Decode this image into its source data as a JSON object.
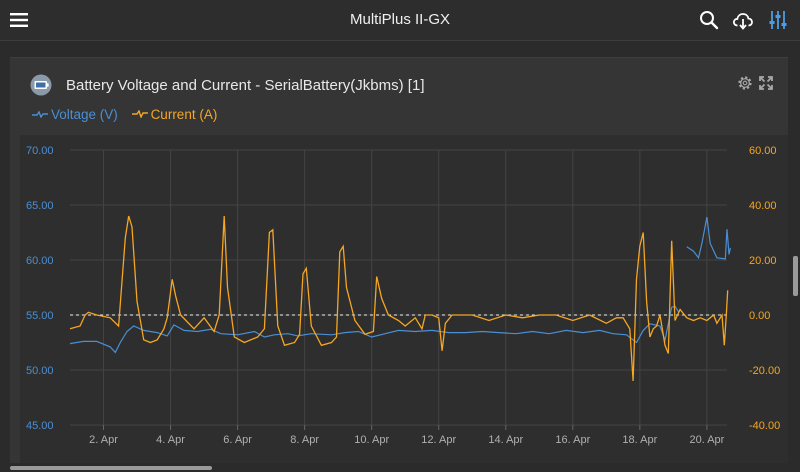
{
  "app": {
    "title": "MultiPlus II-GX",
    "icons": [
      "menu-icon",
      "search-icon",
      "cloud-download-icon",
      "sliders-icon"
    ]
  },
  "widget": {
    "title": "Battery Voltage and Current - SerialBattery(Jkbms) [1]",
    "icons": [
      "battery-icon",
      "gear-icon",
      "expand-icon"
    ]
  },
  "colors": {
    "voltage": "#4a8fd4",
    "current": "#f5a623",
    "left_axis_text": "#4a8fd4",
    "right_axis_text": "#f5a623"
  },
  "chart_data": {
    "type": "line",
    "title": "",
    "legend": "top-left",
    "grid": true,
    "x_ticks": [
      "2. Apr",
      "4. Apr",
      "6. Apr",
      "8. Apr",
      "10. Apr",
      "12. Apr",
      "14. Apr",
      "16. Apr",
      "18. Apr",
      "20. Apr"
    ],
    "xlim_days": [
      1.0,
      20.6
    ],
    "y_left": {
      "ticks": [
        "70.00",
        "65.00",
        "60.00",
        "55.00",
        "50.00",
        "45.00"
      ],
      "range": [
        45,
        70
      ]
    },
    "y_right": {
      "ticks": [
        "60.00",
        "40.00",
        "20.00",
        "0.00",
        "-20.00",
        "-40.00"
      ],
      "range": [
        -40,
        60
      ]
    },
    "zero_reference_line": 0,
    "series": [
      {
        "name": "Voltage (V)",
        "axis": "left",
        "points": [
          [
            1.0,
            52.4
          ],
          [
            1.4,
            52.6
          ],
          [
            1.8,
            52.6
          ],
          [
            2.2,
            52.1
          ],
          [
            2.35,
            51.6
          ],
          [
            2.5,
            52.5
          ],
          [
            2.7,
            53.5
          ],
          [
            2.9,
            54.0
          ],
          [
            3.2,
            53.6
          ],
          [
            3.6,
            53.4
          ],
          [
            3.9,
            53.1
          ],
          [
            4.1,
            54.1
          ],
          [
            4.4,
            53.6
          ],
          [
            4.8,
            53.5
          ],
          [
            5.2,
            53.7
          ],
          [
            5.5,
            53.3
          ],
          [
            6.0,
            53.2
          ],
          [
            6.5,
            53.5
          ],
          [
            6.8,
            53.0
          ],
          [
            7.1,
            53.2
          ],
          [
            7.5,
            53.3
          ],
          [
            7.8,
            53.1
          ],
          [
            8.2,
            53.3
          ],
          [
            8.8,
            53.2
          ],
          [
            9.2,
            53.4
          ],
          [
            9.6,
            53.5
          ],
          [
            10.0,
            53.0
          ],
          [
            10.4,
            53.3
          ],
          [
            10.8,
            53.6
          ],
          [
            11.3,
            53.5
          ],
          [
            11.8,
            53.6
          ],
          [
            12.3,
            53.4
          ],
          [
            12.8,
            53.4
          ],
          [
            13.3,
            53.5
          ],
          [
            13.8,
            53.4
          ],
          [
            14.3,
            53.3
          ],
          [
            14.8,
            53.5
          ],
          [
            15.3,
            53.3
          ],
          [
            15.8,
            53.6
          ],
          [
            16.3,
            53.4
          ],
          [
            16.8,
            53.6
          ],
          [
            17.2,
            53.3
          ],
          [
            17.6,
            53.2
          ],
          [
            17.9,
            52.5
          ],
          [
            18.1,
            53.6
          ],
          [
            18.3,
            54.2
          ],
          [
            18.6,
            54.0
          ],
          [
            18.75,
            52.7
          ],
          [
            18.85,
            54.2
          ],
          [
            18.95,
            55.7
          ],
          [
            19.05,
            55.8
          ],
          [
            19.15,
            55.3
          ]
        ],
        "points_2": [
          [
            19.4,
            61.2
          ],
          [
            19.6,
            60.8
          ],
          [
            19.75,
            60.2
          ],
          [
            19.85,
            61.5
          ],
          [
            20.0,
            63.9
          ],
          [
            20.1,
            61.5
          ],
          [
            20.3,
            60.2
          ],
          [
            20.55,
            60.1
          ],
          [
            20.6,
            62.8
          ],
          [
            20.66,
            60.5
          ],
          [
            20.7,
            61.1
          ]
        ]
      },
      {
        "name": "Current (A)",
        "axis": "right",
        "points": [
          [
            1.0,
            -5
          ],
          [
            1.3,
            -4
          ],
          [
            1.45,
            0
          ],
          [
            1.55,
            1
          ],
          [
            1.8,
            0
          ],
          [
            2.2,
            -1
          ],
          [
            2.45,
            -4
          ],
          [
            2.65,
            28
          ],
          [
            2.75,
            36
          ],
          [
            2.85,
            32
          ],
          [
            3.0,
            5
          ],
          [
            3.2,
            -9
          ],
          [
            3.4,
            -10
          ],
          [
            3.6,
            -9
          ],
          [
            3.8,
            -5
          ],
          [
            3.9,
            -1
          ],
          [
            4.05,
            13
          ],
          [
            4.15,
            7
          ],
          [
            4.3,
            0
          ],
          [
            4.7,
            -5
          ],
          [
            5.0,
            -1
          ],
          [
            5.3,
            -6
          ],
          [
            5.45,
            0
          ],
          [
            5.6,
            36
          ],
          [
            5.7,
            10
          ],
          [
            5.9,
            -8
          ],
          [
            6.2,
            -10
          ],
          [
            6.6,
            -8
          ],
          [
            6.8,
            -5
          ],
          [
            6.95,
            30
          ],
          [
            7.05,
            31
          ],
          [
            7.2,
            -4
          ],
          [
            7.4,
            -11
          ],
          [
            7.7,
            -10
          ],
          [
            7.85,
            -7
          ],
          [
            7.95,
            15
          ],
          [
            8.05,
            17
          ],
          [
            8.2,
            -4
          ],
          [
            8.5,
            -11
          ],
          [
            8.8,
            -10
          ],
          [
            8.95,
            -8
          ],
          [
            9.05,
            23
          ],
          [
            9.15,
            25
          ],
          [
            9.25,
            10
          ],
          [
            9.5,
            -2
          ],
          [
            9.8,
            -7
          ],
          [
            10.05,
            -6
          ],
          [
            10.15,
            14
          ],
          [
            10.3,
            6
          ],
          [
            10.5,
            0
          ],
          [
            10.8,
            -2
          ],
          [
            11.0,
            -4
          ],
          [
            11.3,
            -1
          ],
          [
            11.5,
            -5
          ],
          [
            11.6,
            0
          ],
          [
            11.8,
            0
          ],
          [
            12.0,
            -1
          ],
          [
            12.1,
            -13
          ],
          [
            12.2,
            -3
          ],
          [
            12.4,
            0
          ],
          [
            13.0,
            0
          ],
          [
            13.5,
            -2
          ],
          [
            14.0,
            0
          ],
          [
            14.5,
            -1
          ],
          [
            15.0,
            0
          ],
          [
            15.5,
            0
          ],
          [
            16.0,
            -2
          ],
          [
            16.5,
            0
          ],
          [
            17.0,
            -3
          ],
          [
            17.3,
            -1
          ],
          [
            17.5,
            -1
          ],
          [
            17.7,
            -5
          ],
          [
            17.8,
            -24
          ],
          [
            17.9,
            13
          ],
          [
            18.0,
            25
          ],
          [
            18.1,
            30
          ],
          [
            18.2,
            5
          ],
          [
            18.3,
            -8
          ],
          [
            18.4,
            -5
          ],
          [
            18.5,
            -4
          ],
          [
            18.6,
            0
          ],
          [
            18.75,
            -11
          ],
          [
            18.85,
            -14
          ],
          [
            18.95,
            27
          ],
          [
            19.05,
            -2
          ],
          [
            19.2,
            2
          ],
          [
            19.4,
            -1
          ],
          [
            19.6,
            -2
          ],
          [
            19.8,
            -1
          ],
          [
            20.0,
            -2
          ],
          [
            20.2,
            0
          ],
          [
            20.3,
            -3
          ],
          [
            20.45,
            0
          ],
          [
            20.52,
            -11
          ],
          [
            20.58,
            0
          ],
          [
            20.62,
            9
          ]
        ]
      }
    ]
  }
}
